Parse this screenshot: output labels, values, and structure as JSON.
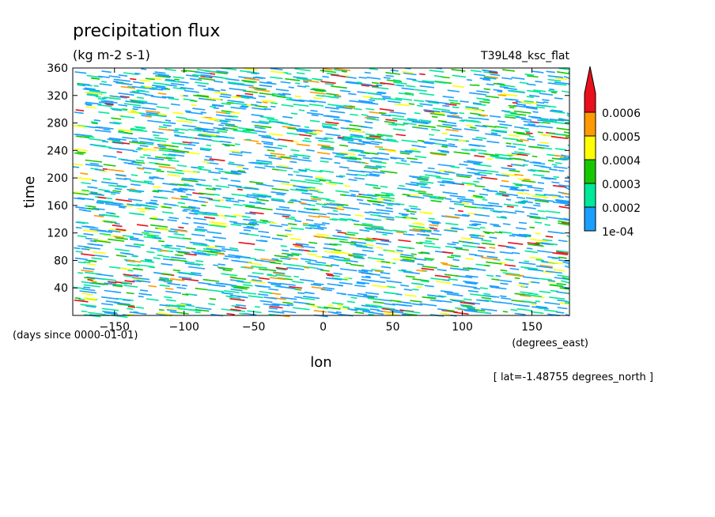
{
  "chart_data": {
    "type": "heatmap",
    "title": "precipitation flux",
    "subtitle": "(kg m-2 s-1)",
    "run_label": "T39L48_ksc_flat",
    "xlabel": "lon",
    "x_units": "(degrees_east)",
    "ylabel": "time",
    "y_units": "(days since 0000-01-01)",
    "slice_note": "[ lat=-1.48755 degrees_north ]",
    "xlim": [
      -180,
      177
    ],
    "ylim": [
      0,
      360
    ],
    "x_ticks": [
      -150,
      -100,
      -50,
      0,
      50,
      100,
      150
    ],
    "y_ticks": [
      40,
      80,
      120,
      160,
      200,
      240,
      280,
      320,
      360
    ],
    "grid": false,
    "legend_position": "right",
    "colorbar": {
      "levels": [
        0.0001,
        0.0002,
        0.0003,
        0.0004,
        0.0005,
        0.0006
      ],
      "labels": [
        "1e-04",
        "0.0002",
        "0.0003",
        "0.0004",
        "0.0005",
        "0.0006"
      ],
      "colors": [
        "#1a9fff",
        "#00e89a",
        "#17c800",
        "#ffff00",
        "#ff9a00",
        "#e8101c"
      ],
      "extend": "max"
    }
  }
}
